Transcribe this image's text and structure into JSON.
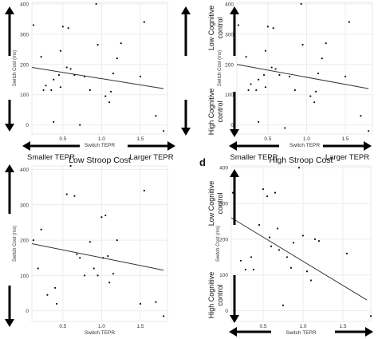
{
  "chart_data": [
    {
      "type": "scatter",
      "title": "",
      "panel_letter": "",
      "xlabel": "Switch TEPR",
      "ylabel": "Switch Cost (ms)",
      "xlim": [
        0.1,
        1.85
      ],
      "ylim": [
        -30,
        405
      ],
      "xticks": [
        "0.5",
        "1.0",
        "1.5"
      ],
      "yticks": [
        "0",
        "100",
        "200",
        "300",
        "400"
      ],
      "grid": true,
      "trend": {
        "x": [
          0.1,
          1.8
        ],
        "y": [
          190,
          120
        ]
      },
      "x_annotations": {
        "left": "Smaller TEPR",
        "right": "Larger TEPR"
      },
      "y_annotations": {
        "top": "",
        "bottom": ""
      },
      "points": [
        {
          "x": 0.12,
          "y": 330
        },
        {
          "x": 0.22,
          "y": 225
        },
        {
          "x": 0.25,
          "y": 115
        },
        {
          "x": 0.28,
          "y": 130
        },
        {
          "x": 0.35,
          "y": 115
        },
        {
          "x": 0.38,
          "y": 150
        },
        {
          "x": 0.38,
          "y": 10
        },
        {
          "x": 0.45,
          "y": 165
        },
        {
          "x": 0.47,
          "y": 125
        },
        {
          "x": 0.47,
          "y": 245
        },
        {
          "x": 0.5,
          "y": 325
        },
        {
          "x": 0.55,
          "y": 190
        },
        {
          "x": 0.57,
          "y": 320
        },
        {
          "x": 0.6,
          "y": 185
        },
        {
          "x": 0.65,
          "y": 165
        },
        {
          "x": 0.72,
          "y": 0
        },
        {
          "x": 0.78,
          "y": 160
        },
        {
          "x": 0.85,
          "y": 115
        },
        {
          "x": 0.93,
          "y": 400
        },
        {
          "x": 0.95,
          "y": 265
        },
        {
          "x": 1.05,
          "y": 95
        },
        {
          "x": 1.1,
          "y": 75
        },
        {
          "x": 1.12,
          "y": 110
        },
        {
          "x": 1.15,
          "y": 170
        },
        {
          "x": 1.2,
          "y": 220
        },
        {
          "x": 1.25,
          "y": 270
        },
        {
          "x": 1.5,
          "y": 160
        },
        {
          "x": 1.55,
          "y": 340
        },
        {
          "x": 1.7,
          "y": 30
        },
        {
          "x": 1.8,
          "y": -20
        }
      ]
    },
    {
      "type": "scatter",
      "title": "",
      "panel_letter": "",
      "xlabel": "Switch TEPR",
      "ylabel": "Switch Cost (ms)",
      "xlim": [
        0.1,
        1.85
      ],
      "ylim": [
        -30,
        405
      ],
      "xticks": [
        "0.5",
        "1.0",
        "1.5"
      ],
      "yticks": [
        "0",
        "100",
        "200",
        "300",
        "400"
      ],
      "grid": true,
      "trend": {
        "x": [
          0.1,
          1.8
        ],
        "y": [
          200,
          120
        ]
      },
      "x_annotations": {
        "left": "Smaller TEPR",
        "right": "Larger TEPR"
      },
      "y_annotations": {
        "top": "Low Cognitive control",
        "bottom": "High Cognitive control"
      },
      "points": [
        {
          "x": 0.12,
          "y": 330
        },
        {
          "x": 0.22,
          "y": 225
        },
        {
          "x": 0.25,
          "y": 115
        },
        {
          "x": 0.28,
          "y": 135
        },
        {
          "x": 0.35,
          "y": 115
        },
        {
          "x": 0.38,
          "y": 150
        },
        {
          "x": 0.38,
          "y": 10
        },
        {
          "x": 0.45,
          "y": 165
        },
        {
          "x": 0.47,
          "y": 125
        },
        {
          "x": 0.47,
          "y": 245
        },
        {
          "x": 0.5,
          "y": 325
        },
        {
          "x": 0.55,
          "y": 190
        },
        {
          "x": 0.57,
          "y": 320
        },
        {
          "x": 0.6,
          "y": 185
        },
        {
          "x": 0.65,
          "y": 165
        },
        {
          "x": 0.72,
          "y": -10
        },
        {
          "x": 0.78,
          "y": 160
        },
        {
          "x": 0.85,
          "y": 115
        },
        {
          "x": 0.93,
          "y": 400
        },
        {
          "x": 0.95,
          "y": 265
        },
        {
          "x": 1.05,
          "y": 95
        },
        {
          "x": 1.1,
          "y": 75
        },
        {
          "x": 1.12,
          "y": 110
        },
        {
          "x": 1.15,
          "y": 170
        },
        {
          "x": 1.2,
          "y": 220
        },
        {
          "x": 1.25,
          "y": 270
        },
        {
          "x": 1.5,
          "y": 160
        },
        {
          "x": 1.55,
          "y": 340
        },
        {
          "x": 1.7,
          "y": 30
        },
        {
          "x": 1.8,
          "y": -20
        }
      ]
    },
    {
      "type": "scatter",
      "title": "Low Stroop Cost",
      "panel_letter": "",
      "xlabel": "Switch TEPR",
      "ylabel": "Switch Cost (ms)",
      "xlim": [
        0.1,
        1.85
      ],
      "ylim": [
        -30,
        410
      ],
      "xticks": [
        "0.5",
        "1.0",
        "1.5"
      ],
      "yticks": [
        "0",
        "100",
        "200",
        "300",
        "400"
      ],
      "grid": true,
      "trend": {
        "x": [
          0.1,
          1.8
        ],
        "y": [
          190,
          115
        ]
      },
      "x_annotations": {
        "left": "",
        "right": ""
      },
      "y_annotations": {
        "top": "",
        "bottom": ""
      },
      "points": [
        {
          "x": 0.12,
          "y": 200
        },
        {
          "x": 0.18,
          "y": 120
        },
        {
          "x": 0.22,
          "y": 230
        },
        {
          "x": 0.3,
          "y": 45
        },
        {
          "x": 0.4,
          "y": 65
        },
        {
          "x": 0.42,
          "y": 20
        },
        {
          "x": 0.55,
          "y": 330
        },
        {
          "x": 0.6,
          "y": 410
        },
        {
          "x": 0.65,
          "y": 325
        },
        {
          "x": 0.68,
          "y": 160
        },
        {
          "x": 0.72,
          "y": 150
        },
        {
          "x": 0.78,
          "y": 100
        },
        {
          "x": 0.85,
          "y": 195
        },
        {
          "x": 0.9,
          "y": 120
        },
        {
          "x": 0.95,
          "y": 100
        },
        {
          "x": 1.0,
          "y": 265
        },
        {
          "x": 1.02,
          "y": 150
        },
        {
          "x": 1.05,
          "y": 270
        },
        {
          "x": 1.08,
          "y": 155
        },
        {
          "x": 1.1,
          "y": 80
        },
        {
          "x": 1.15,
          "y": 105
        },
        {
          "x": 1.2,
          "y": 200
        },
        {
          "x": 1.5,
          "y": 20
        },
        {
          "x": 1.55,
          "y": 340
        },
        {
          "x": 1.7,
          "y": 25
        },
        {
          "x": 1.8,
          "y": -15
        }
      ]
    },
    {
      "type": "scatter",
      "title": "High Stroop Cost",
      "panel_letter": "d",
      "xlabel": "Switch TEPR",
      "ylabel": "Switch Cost (ms)",
      "xlim": [
        0.1,
        1.85
      ],
      "ylim": [
        -30,
        405
      ],
      "xticks": [
        "0.5",
        "1.0",
        "1.5"
      ],
      "yticks": [
        "0",
        "100",
        "200",
        "300",
        "400"
      ],
      "grid": true,
      "trend": {
        "x": [
          0.1,
          1.8
        ],
        "y": [
          260,
          30
        ]
      },
      "x_annotations": {
        "left": "",
        "right": ""
      },
      "y_annotations": {
        "top": "Low Cognitive control",
        "bottom": "High Cognitive control"
      },
      "points": [
        {
          "x": 0.12,
          "y": 330
        },
        {
          "x": 0.22,
          "y": 140
        },
        {
          "x": 0.28,
          "y": 115
        },
        {
          "x": 0.35,
          "y": 150
        },
        {
          "x": 0.38,
          "y": 115
        },
        {
          "x": 0.45,
          "y": 240
        },
        {
          "x": 0.5,
          "y": 340
        },
        {
          "x": 0.55,
          "y": 320
        },
        {
          "x": 0.58,
          "y": 205
        },
        {
          "x": 0.6,
          "y": 180
        },
        {
          "x": 0.65,
          "y": 330
        },
        {
          "x": 0.68,
          "y": 230
        },
        {
          "x": 0.7,
          "y": 170
        },
        {
          "x": 0.75,
          "y": 15
        },
        {
          "x": 0.8,
          "y": 150
        },
        {
          "x": 0.85,
          "y": 120
        },
        {
          "x": 0.88,
          "y": 190
        },
        {
          "x": 0.95,
          "y": 400
        },
        {
          "x": 1.0,
          "y": 210
        },
        {
          "x": 1.05,
          "y": 110
        },
        {
          "x": 1.1,
          "y": 85
        },
        {
          "x": 1.15,
          "y": 200
        },
        {
          "x": 1.2,
          "y": 195
        },
        {
          "x": 1.55,
          "y": 160
        },
        {
          "x": 1.85,
          "y": -15
        }
      ]
    }
  ]
}
